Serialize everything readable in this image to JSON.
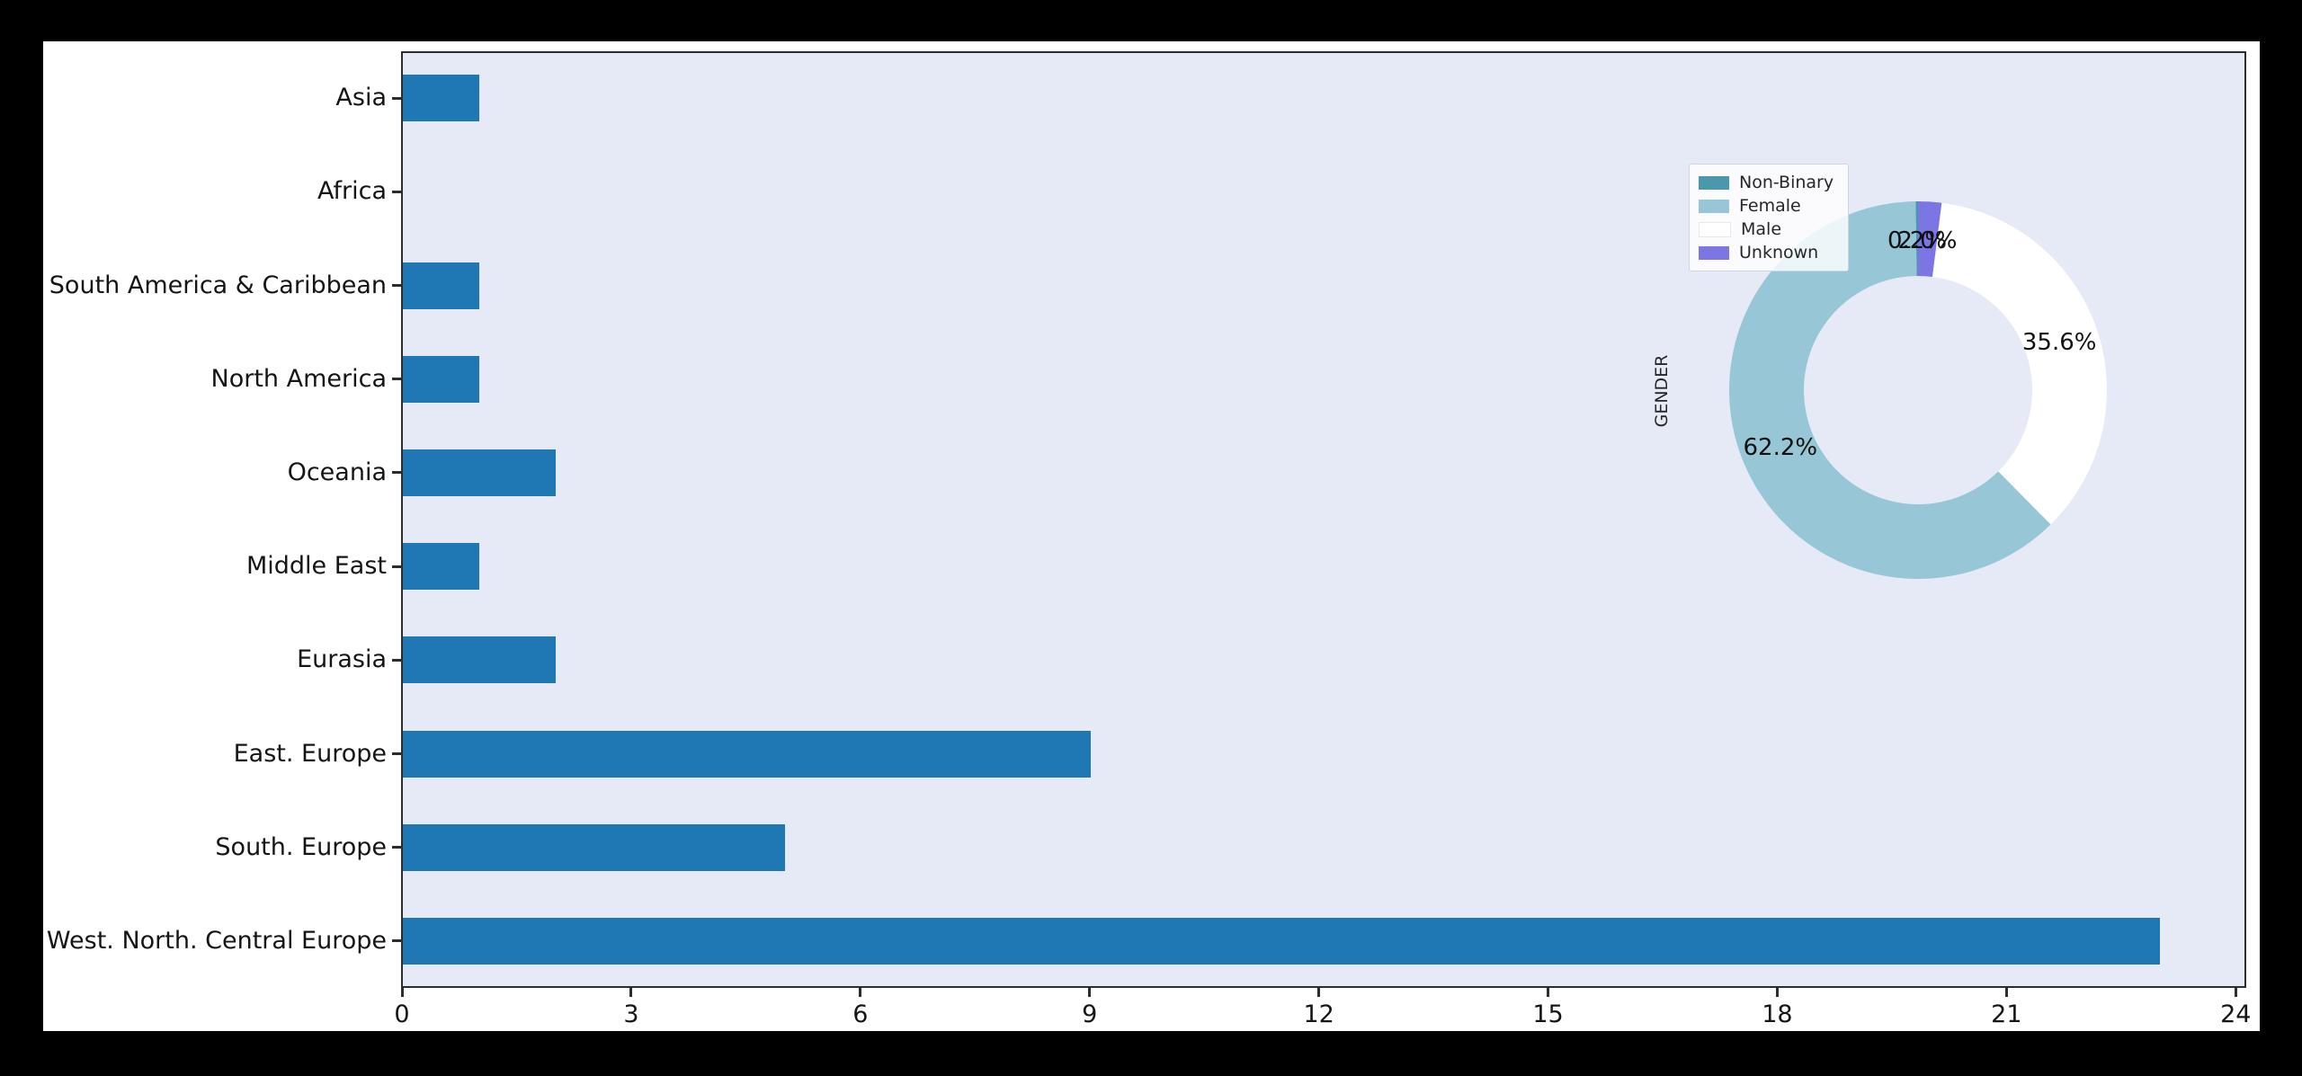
{
  "page": {
    "background": "#000000"
  },
  "figure": {
    "background": "#ffffff"
  },
  "chart_data": [
    {
      "type": "bar",
      "orientation": "horizontal",
      "title": "",
      "xlabel": "",
      "ylabel": "",
      "categories": [
        "Asia",
        "Africa",
        "South America & Caribbean",
        "North America",
        "Oceania",
        "Middle East",
        "Eurasia",
        "East. Europe",
        "South. Europe",
        "West. North. Central Europe"
      ],
      "values": [
        1,
        0,
        1,
        1,
        2,
        1,
        2,
        9,
        5,
        23
      ],
      "xlim": [
        0,
        24.15
      ],
      "xticks": [
        0,
        3,
        6,
        9,
        12,
        15,
        18,
        21,
        24
      ],
      "grid": false,
      "bar_color": "#1f77b4",
      "plot_bg": "#e6eaf6"
    },
    {
      "type": "pie",
      "donut": true,
      "title": "",
      "ylabel": "GENDER",
      "start_angle": 90,
      "counterclock": true,
      "legend_position": "upper left",
      "slices": [
        {
          "label": "Non-Binary",
          "pct": 0.2,
          "pct_label": "0.2%",
          "color": "#4a98ac"
        },
        {
          "label": "Female",
          "pct": 62.2,
          "pct_label": "62.2%",
          "color": "#97c7d6"
        },
        {
          "label": "Male",
          "pct": 35.6,
          "pct_label": "35.6%",
          "color": "#ffffff"
        },
        {
          "label": "Unknown",
          "pct": 2.0,
          "pct_label": "2.0%",
          "color": "#7b76e4"
        }
      ]
    }
  ]
}
